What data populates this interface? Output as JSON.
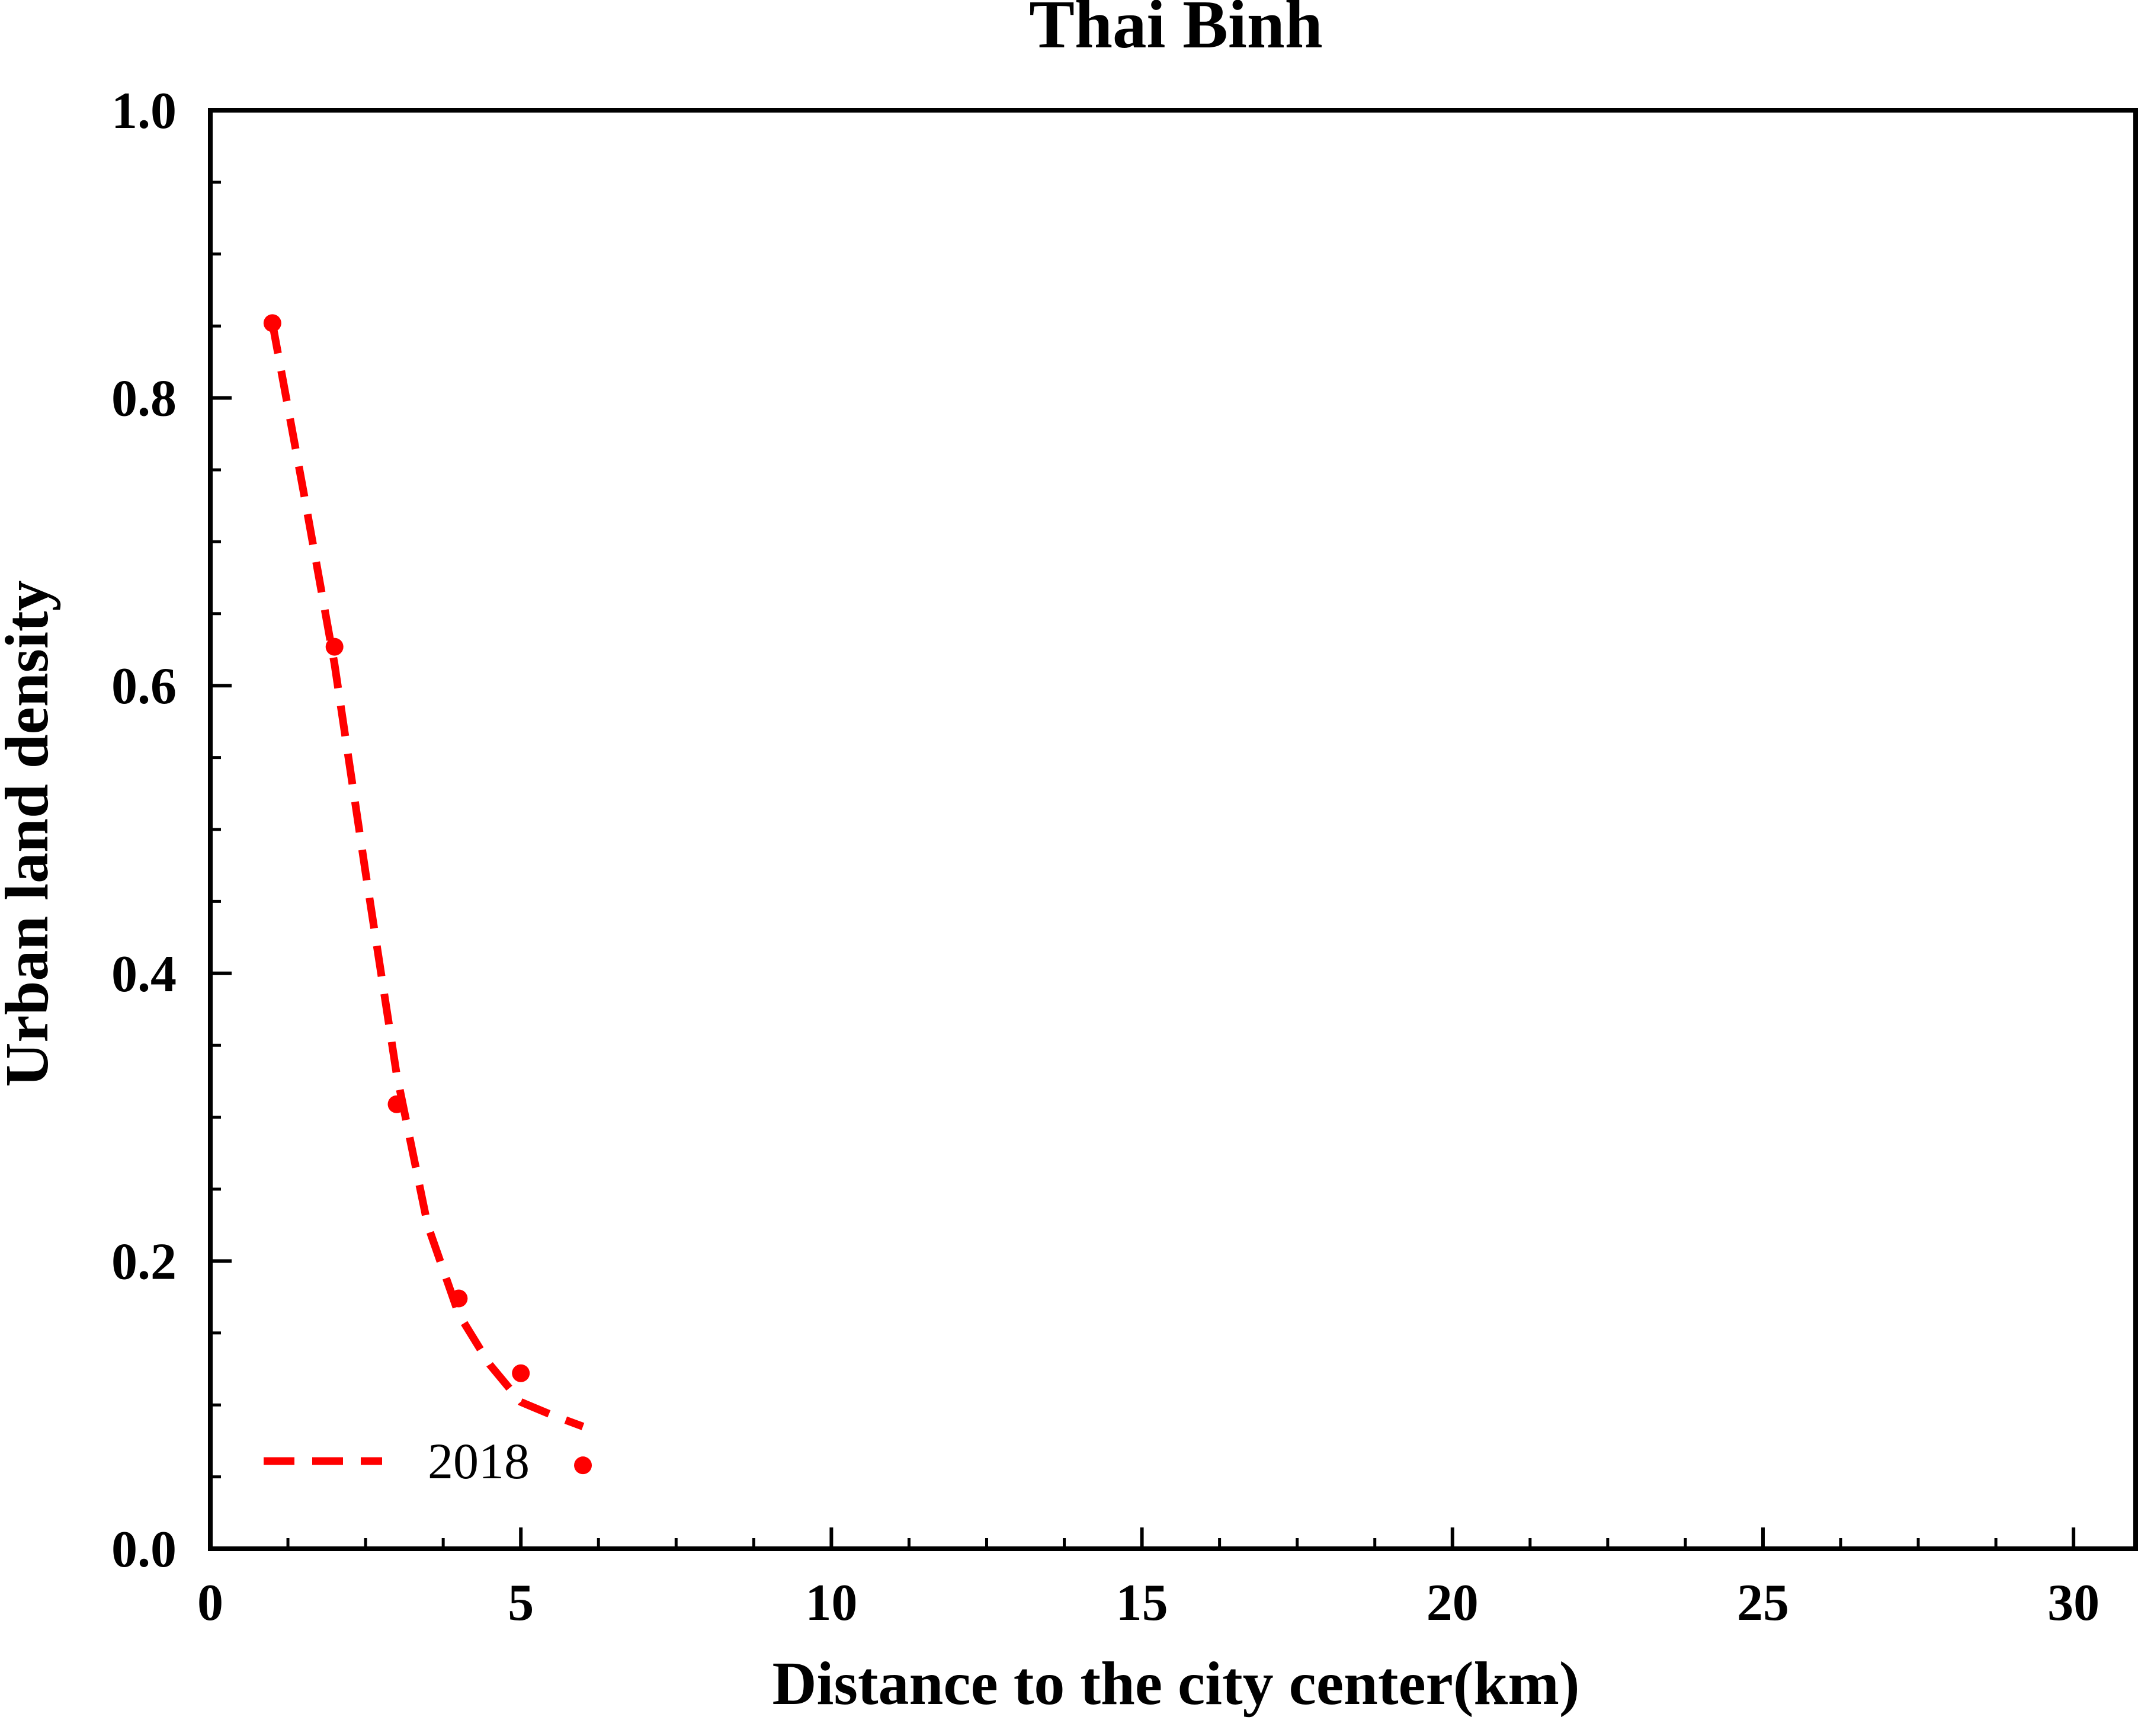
{
  "chart_data": {
    "type": "line",
    "title": "Thai Binh",
    "xlabel": "Distance to the city center(km)",
    "ylabel": "Urban land density",
    "xlim": [
      0,
      31
    ],
    "ylim": [
      0,
      1.0
    ],
    "x_ticks": [
      0,
      5,
      10,
      15,
      20,
      25,
      30
    ],
    "x_tick_labels": [
      "0",
      "5",
      "10",
      "15",
      "20",
      "25",
      "30"
    ],
    "y_ticks": [
      0,
      0.2,
      0.4,
      0.6,
      0.8,
      1.0
    ],
    "y_tick_labels": [
      "0.0",
      "0.2",
      "0.4",
      "0.6",
      "0.8",
      "1.0"
    ],
    "x_minor_step": 1.25,
    "y_minor_step": 0.05,
    "grid": false,
    "legend_position": "bottom-left",
    "series": [
      {
        "name": "2018",
        "color": "#ff0000",
        "style": "dashed-fit-with-points",
        "points": {
          "x": [
            1,
            2,
            3,
            4,
            5,
            6
          ],
          "y": [
            0.852,
            0.627,
            0.309,
            0.174,
            0.122,
            0.058
          ]
        },
        "fit": {
          "x": [
            1,
            1.5,
            2,
            2.5,
            3,
            3.5,
            4,
            4.5,
            5,
            5.5,
            6
          ],
          "y": [
            0.852,
            0.735,
            0.615,
            0.47,
            0.33,
            0.225,
            0.163,
            0.128,
            0.102,
            0.093,
            0.085
          ]
        }
      }
    ]
  }
}
